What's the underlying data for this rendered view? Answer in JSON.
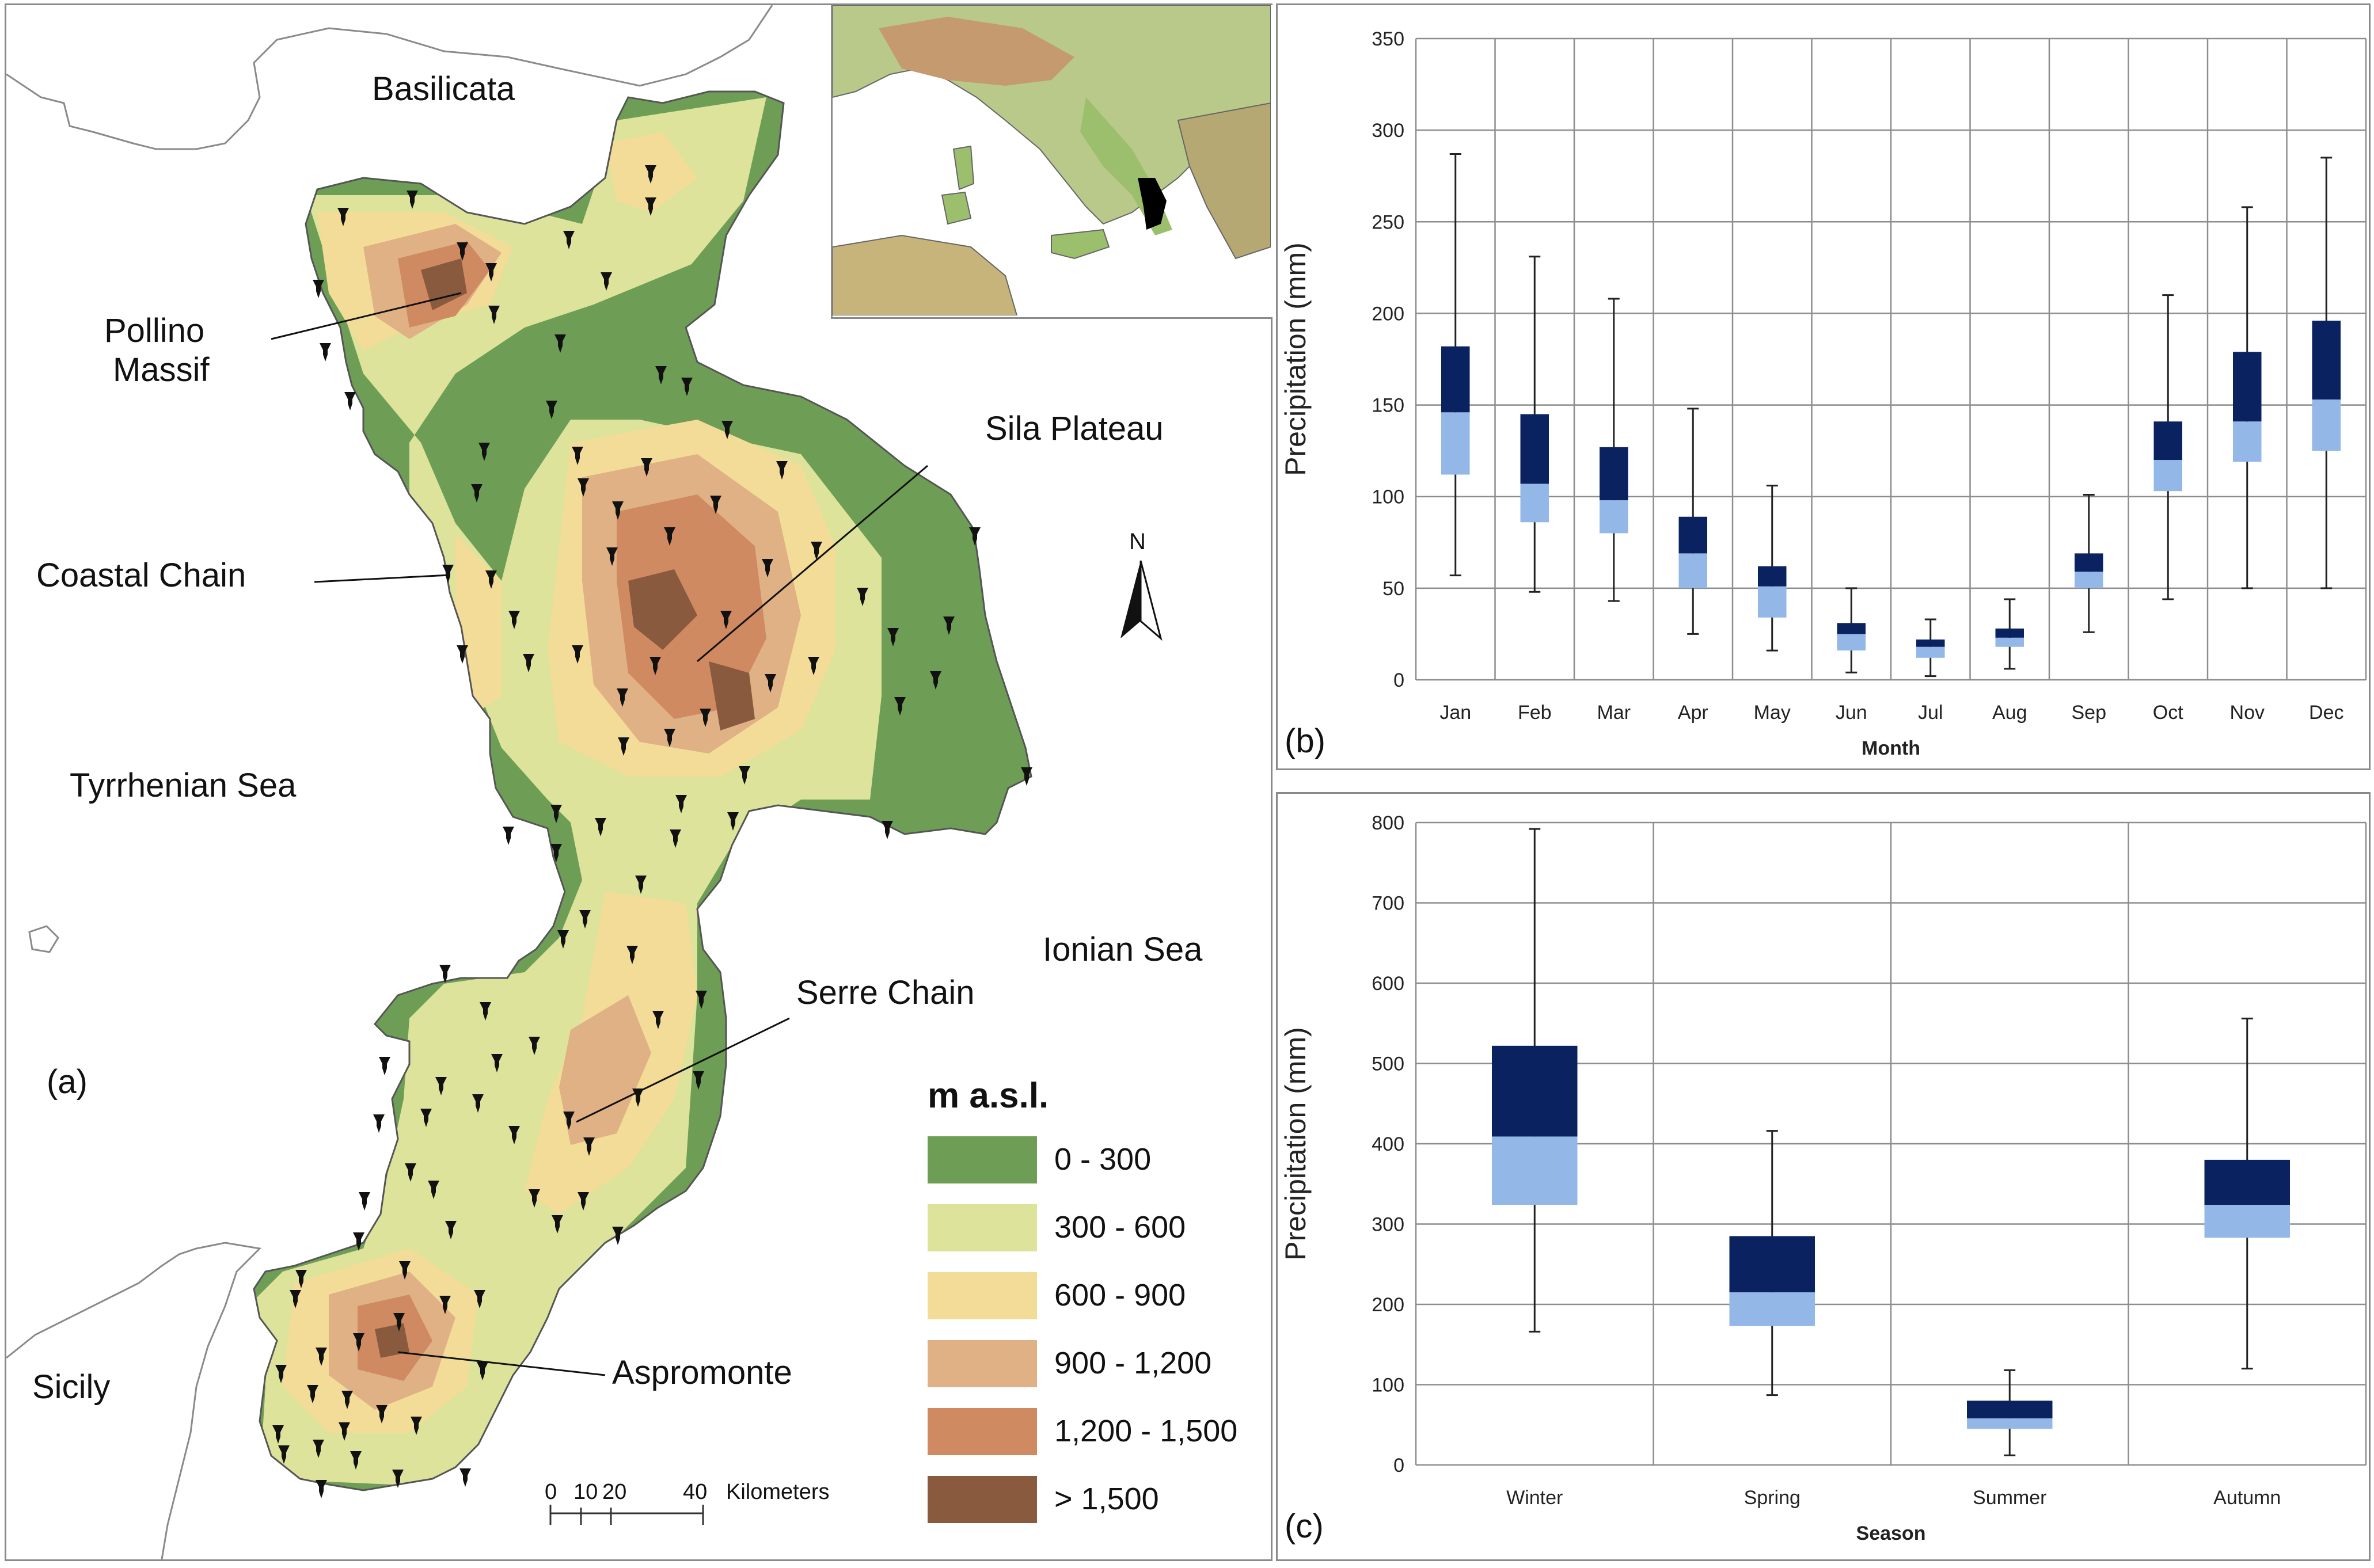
{
  "map": {
    "panel_label": "(a)",
    "regions": {
      "basilicata": "Basilicata",
      "tyrrhenian": "Tyrrhenian Sea",
      "ionian": "Ionian Sea",
      "sicily": "Sicily"
    },
    "features": {
      "pollino_line1": "Pollino",
      "pollino_line2": "Massif",
      "sila": "Sila Plateau",
      "coastal": "Coastal Chain",
      "serre": "Serre Chain",
      "aspromonte": "Aspromonte"
    },
    "north": "N",
    "scale": {
      "t0": "0",
      "t1": "10",
      "t2": "20",
      "t3": "40",
      "unit": "Kilometers"
    },
    "legend": {
      "title": "m a.s.l.",
      "classes": [
        {
          "label": "0 - 300",
          "color": "#6e9e55"
        },
        {
          "label": "300 - 600",
          "color": "#dde39a"
        },
        {
          "label": "600 - 900",
          "color": "#f3dc97"
        },
        {
          "label": "900 - 1,200",
          "color": "#dfb185"
        },
        {
          "label": "1,200 - 1,500",
          "color": "#cf8a62"
        },
        {
          "label": "> 1,500",
          "color": "#8a5a3f"
        }
      ]
    },
    "colors": {
      "sea": "#ffffff",
      "land_outline": "#666666",
      "station": "#111111"
    }
  },
  "chart_data": [
    {
      "type": "box",
      "panel_label": "(b)",
      "xlabel": "Month",
      "ylabel": "Precipitation (mm)",
      "ylim": [
        0,
        350
      ],
      "yticks": [
        0,
        50,
        100,
        150,
        200,
        250,
        300,
        350
      ],
      "categories": [
        "Jan",
        "Feb",
        "Mar",
        "Apr",
        "May",
        "Jun",
        "Jul",
        "Aug",
        "Sep",
        "Oct",
        "Nov",
        "Dec"
      ],
      "min": [
        57,
        48,
        43,
        25,
        16,
        4,
        2,
        6,
        26,
        44,
        50,
        50
      ],
      "q1": [
        112,
        86,
        80,
        50,
        34,
        16,
        12,
        18,
        50,
        103,
        119,
        125
      ],
      "median": [
        146,
        107,
        98,
        69,
        51,
        25,
        18,
        23,
        59,
        120,
        141,
        153
      ],
      "q3": [
        182,
        145,
        127,
        89,
        62,
        31,
        22,
        28,
        69,
        141,
        179,
        196
      ],
      "max": [
        287,
        231,
        208,
        148,
        106,
        50,
        33,
        44,
        101,
        210,
        258,
        285
      ],
      "colors": {
        "upper_box": "#0a2360",
        "lower_box": "#93b7e6",
        "whisker": "#222222"
      },
      "grid": true
    },
    {
      "type": "box",
      "panel_label": "(c)",
      "xlabel": "Season",
      "ylabel": "Precipitation (mm)",
      "ylim": [
        0,
        800
      ],
      "yticks": [
        0,
        100,
        200,
        300,
        400,
        500,
        600,
        700,
        800
      ],
      "categories": [
        "Winter",
        "Spring",
        "Summer",
        "Autumn"
      ],
      "min": [
        166,
        87,
        12,
        120
      ],
      "q1": [
        324,
        173,
        45,
        283
      ],
      "median": [
        409,
        215,
        58,
        324
      ],
      "q3": [
        522,
        285,
        80,
        380
      ],
      "max": [
        792,
        416,
        118,
        556
      ],
      "colors": {
        "upper_box": "#0a2360",
        "lower_box": "#93b7e6",
        "whisker": "#222222"
      },
      "grid": true
    }
  ]
}
